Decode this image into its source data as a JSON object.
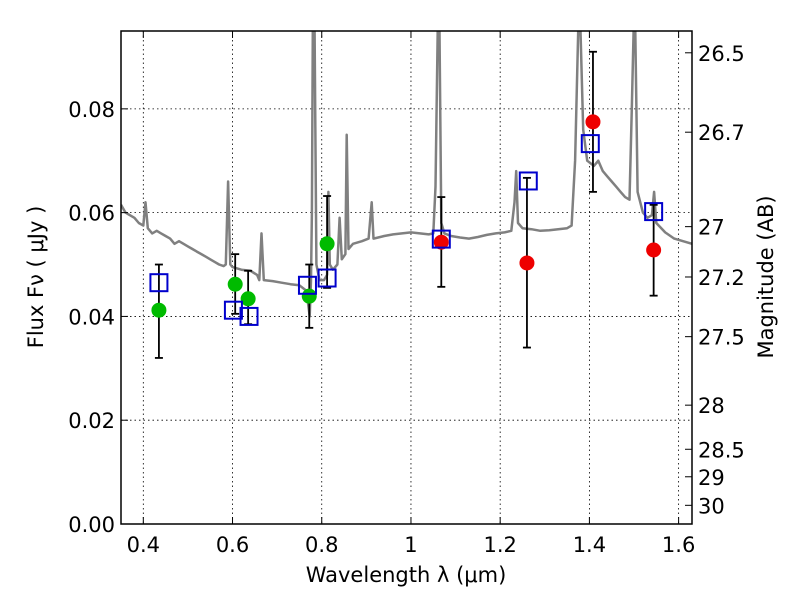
{
  "chart_data": {
    "type": "scatter",
    "xlabel": "Wavelength  λ (μm)",
    "ylabel": "Flux  Fν ( μJy )",
    "y2label": "Magnitude (AB)",
    "xlim": [
      0.35,
      1.63
    ],
    "ylim": [
      0.0,
      0.095
    ],
    "grid": true,
    "grid_style": "dotted",
    "x_ticks": [
      0.4,
      0.6,
      0.8,
      1.0,
      1.2,
      1.4,
      1.6
    ],
    "x_tick_labels": [
      "0.4",
      "0.6",
      "0.8",
      "1",
      "1.2",
      "1.4",
      "1.6"
    ],
    "y_ticks": [
      0.0,
      0.02,
      0.04,
      0.06,
      0.08
    ],
    "y_tick_labels": [
      "0.00",
      "0.02",
      "0.04",
      "0.06",
      "0.08"
    ],
    "y2_ticks": [
      {
        "label": "26.5",
        "flux": 0.0908
      },
      {
        "label": "26.7",
        "flux": 0.0755
      },
      {
        "label": "27",
        "flux": 0.0573
      },
      {
        "label": "27.2",
        "flux": 0.0476
      },
      {
        "label": "27.5",
        "flux": 0.0361
      },
      {
        "label": "28",
        "flux": 0.0229
      },
      {
        "label": "28.5",
        "flux": 0.0144
      },
      {
        "label": "29",
        "flux": 0.0091
      },
      {
        "label": "30",
        "flux": 0.0036
      }
    ],
    "colors": {
      "spectrum": "#808080",
      "green_points": "#00bb00",
      "red_points": "#ee0000",
      "model_squares": "#0000cc",
      "error_bars": "#000000"
    },
    "series": [
      {
        "style": "green-circles",
        "points": [
          {
            "x": 0.435,
            "y": 0.0412,
            "yerr_low": 0.032,
            "yerr_high": 0.05
          },
          {
            "x": 0.606,
            "y": 0.0462,
            "yerr_low": 0.0405,
            "yerr_high": 0.052
          },
          {
            "x": 0.635,
            "y": 0.0434,
            "yerr_low": 0.0385,
            "yerr_high": 0.0488
          },
          {
            "x": 0.772,
            "y": 0.0439,
            "yerr_low": 0.0378,
            "yerr_high": 0.05
          },
          {
            "x": 0.812,
            "y": 0.054,
            "yerr_low": 0.0455,
            "yerr_high": 0.0632
          }
        ]
      },
      {
        "style": "red-circles",
        "points": [
          {
            "x": 1.068,
            "y": 0.0543,
            "yerr_low": 0.0457,
            "yerr_high": 0.063
          },
          {
            "x": 1.26,
            "y": 0.0503,
            "yerr_low": 0.034,
            "yerr_high": 0.0667
          },
          {
            "x": 1.408,
            "y": 0.0775,
            "yerr_low": 0.064,
            "yerr_high": 0.091
          },
          {
            "x": 1.544,
            "y": 0.0528,
            "yerr_low": 0.044,
            "yerr_high": 0.0615
          }
        ]
      },
      {
        "style": "blue-squares",
        "points": [
          {
            "x": 0.435,
            "y": 0.0465
          },
          {
            "x": 0.602,
            "y": 0.0412
          },
          {
            "x": 0.637,
            "y": 0.04
          },
          {
            "x": 0.768,
            "y": 0.046
          },
          {
            "x": 0.812,
            "y": 0.0474
          },
          {
            "x": 1.068,
            "y": 0.0549
          },
          {
            "x": 1.263,
            "y": 0.0661
          },
          {
            "x": 1.402,
            "y": 0.0733
          },
          {
            "x": 1.544,
            "y": 0.0602
          }
        ]
      },
      {
        "style": "grey-line",
        "points": [
          [
            0.35,
            0.0615
          ],
          [
            0.36,
            0.06
          ],
          [
            0.37,
            0.0595
          ],
          [
            0.38,
            0.059
          ],
          [
            0.39,
            0.058
          ],
          [
            0.4,
            0.0575
          ],
          [
            0.405,
            0.062
          ],
          [
            0.41,
            0.057
          ],
          [
            0.42,
            0.056
          ],
          [
            0.43,
            0.0565
          ],
          [
            0.44,
            0.056
          ],
          [
            0.45,
            0.0555
          ],
          [
            0.46,
            0.055
          ],
          [
            0.47,
            0.054
          ],
          [
            0.48,
            0.0545
          ],
          [
            0.49,
            0.054
          ],
          [
            0.5,
            0.0535
          ],
          [
            0.51,
            0.053
          ],
          [
            0.52,
            0.0525
          ],
          [
            0.53,
            0.052
          ],
          [
            0.54,
            0.0515
          ],
          [
            0.55,
            0.051
          ],
          [
            0.56,
            0.0505
          ],
          [
            0.57,
            0.05
          ],
          [
            0.58,
            0.0497
          ],
          [
            0.585,
            0.05
          ],
          [
            0.59,
            0.066
          ],
          [
            0.595,
            0.05
          ],
          [
            0.6,
            0.0495
          ],
          [
            0.62,
            0.049
          ],
          [
            0.64,
            0.0488
          ],
          [
            0.655,
            0.048
          ],
          [
            0.66,
            0.047
          ],
          [
            0.665,
            0.056
          ],
          [
            0.67,
            0.047
          ],
          [
            0.69,
            0.0468
          ],
          [
            0.71,
            0.0465
          ],
          [
            0.73,
            0.0462
          ],
          [
            0.75,
            0.046
          ],
          [
            0.765,
            0.045
          ],
          [
            0.77,
            0.042
          ],
          [
            0.773,
            0.04
          ],
          [
            0.776,
            0.047
          ],
          [
            0.778,
            0.06
          ],
          [
            0.78,
            0.095
          ],
          [
            0.784,
            0.095
          ],
          [
            0.788,
            0.05
          ],
          [
            0.795,
            0.047
          ],
          [
            0.805,
            0.047
          ],
          [
            0.812,
            0.048
          ],
          [
            0.815,
            0.064
          ],
          [
            0.818,
            0.05
          ],
          [
            0.825,
            0.049
          ],
          [
            0.835,
            0.05
          ],
          [
            0.84,
            0.059
          ],
          [
            0.845,
            0.051
          ],
          [
            0.853,
            0.052
          ],
          [
            0.856,
            0.075
          ],
          [
            0.86,
            0.053
          ],
          [
            0.87,
            0.054
          ],
          [
            0.89,
            0.0545
          ],
          [
            0.905,
            0.055
          ],
          [
            0.912,
            0.062
          ],
          [
            0.916,
            0.055
          ],
          [
            0.94,
            0.0555
          ],
          [
            0.96,
            0.0558
          ],
          [
            0.98,
            0.056
          ],
          [
            1.0,
            0.0562
          ],
          [
            1.02,
            0.056
          ],
          [
            1.04,
            0.0558
          ],
          [
            1.05,
            0.056
          ],
          [
            1.055,
            0.065
          ],
          [
            1.06,
            0.095
          ],
          [
            1.064,
            0.095
          ],
          [
            1.068,
            0.058
          ],
          [
            1.075,
            0.056
          ],
          [
            1.09,
            0.0555
          ],
          [
            1.11,
            0.0552
          ],
          [
            1.13,
            0.055
          ],
          [
            1.15,
            0.0553
          ],
          [
            1.17,
            0.0557
          ],
          [
            1.19,
            0.056
          ],
          [
            1.21,
            0.0562
          ],
          [
            1.225,
            0.0565
          ],
          [
            1.232,
            0.062
          ],
          [
            1.236,
            0.068
          ],
          [
            1.24,
            0.058
          ],
          [
            1.25,
            0.057
          ],
          [
            1.27,
            0.0568
          ],
          [
            1.29,
            0.0565
          ],
          [
            1.31,
            0.0566
          ],
          [
            1.33,
            0.0568
          ],
          [
            1.35,
            0.057
          ],
          [
            1.36,
            0.0575
          ],
          [
            1.368,
            0.07
          ],
          [
            1.375,
            0.095
          ],
          [
            1.38,
            0.095
          ],
          [
            1.386,
            0.076
          ],
          [
            1.395,
            0.07
          ],
          [
            1.41,
            0.069
          ],
          [
            1.42,
            0.07
          ],
          [
            1.43,
            0.068
          ],
          [
            1.44,
            0.067
          ],
          [
            1.45,
            0.066
          ],
          [
            1.46,
            0.065
          ],
          [
            1.47,
            0.064
          ],
          [
            1.48,
            0.063
          ],
          [
            1.49,
            0.0625
          ],
          [
            1.495,
            0.08
          ],
          [
            1.499,
            0.095
          ],
          [
            1.503,
            0.095
          ],
          [
            1.508,
            0.064
          ],
          [
            1.52,
            0.06
          ],
          [
            1.53,
            0.059
          ],
          [
            1.54,
            0.0595
          ],
          [
            1.545,
            0.064
          ],
          [
            1.55,
            0.058
          ],
          [
            1.57,
            0.0562
          ],
          [
            1.59,
            0.055
          ],
          [
            1.61,
            0.0545
          ],
          [
            1.63,
            0.054
          ]
        ]
      }
    ]
  }
}
